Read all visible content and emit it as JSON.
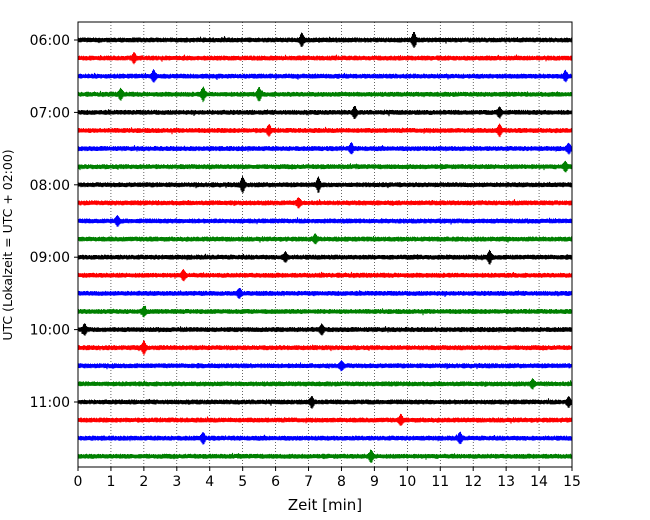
{
  "chart_data": {
    "type": "line",
    "subtype": "seismogram-helicorder",
    "title": "",
    "xlabel": "Zeit  [min]",
    "ylabel": "UTC (Lokalzeit = UTC + 02:00)",
    "xlim": [
      0,
      15
    ],
    "x_ticks": [
      0,
      1,
      2,
      3,
      4,
      5,
      6,
      7,
      8,
      9,
      10,
      11,
      12,
      13,
      14,
      15
    ],
    "x_tick_labels": [
      "0",
      "1",
      "2",
      "3",
      "4",
      "5",
      "6",
      "7",
      "8",
      "9",
      "10",
      "11",
      "12",
      "13",
      "14",
      "15"
    ],
    "y_tick_labels": [
      "06:00",
      "07:00",
      "08:00",
      "09:00",
      "10:00",
      "11:00"
    ],
    "grid": {
      "vertical": true,
      "style": "dotted"
    },
    "row_minutes": 15,
    "trace_color_cycle": [
      "#000000",
      "#ff0000",
      "#0000ff",
      "#008000"
    ],
    "traces": [
      {
        "start": "06:00",
        "color": "#000000",
        "events": [
          {
            "x": 6.8,
            "amp": 2.2
          },
          {
            "x": 10.2,
            "amp": 2.5
          }
        ]
      },
      {
        "start": "06:15",
        "color": "#ff0000",
        "events": [
          {
            "x": 1.7,
            "amp": 1.6
          }
        ]
      },
      {
        "start": "06:30",
        "color": "#0000ff",
        "events": [
          {
            "x": 2.3,
            "amp": 2.0
          },
          {
            "x": 14.8,
            "amp": 1.6
          }
        ]
      },
      {
        "start": "06:45",
        "color": "#008000",
        "events": [
          {
            "x": 1.3,
            "amp": 1.8
          },
          {
            "x": 3.8,
            "amp": 2.3
          },
          {
            "x": 5.5,
            "amp": 2.2
          }
        ]
      },
      {
        "start": "07:00",
        "color": "#000000",
        "events": [
          {
            "x": 8.4,
            "amp": 1.9
          },
          {
            "x": 12.8,
            "amp": 1.7
          }
        ]
      },
      {
        "start": "07:15",
        "color": "#ff0000",
        "events": [
          {
            "x": 5.8,
            "amp": 1.8
          },
          {
            "x": 12.8,
            "amp": 1.9
          }
        ]
      },
      {
        "start": "07:30",
        "color": "#0000ff",
        "events": [
          {
            "x": 8.3,
            "amp": 1.6
          },
          {
            "x": 14.9,
            "amp": 1.5
          }
        ]
      },
      {
        "start": "07:45",
        "color": "#008000",
        "events": [
          {
            "x": 14.8,
            "amp": 1.6
          }
        ]
      },
      {
        "start": "08:00",
        "color": "#000000",
        "events": [
          {
            "x": 5.0,
            "amp": 2.6
          },
          {
            "x": 7.3,
            "amp": 2.4
          }
        ]
      },
      {
        "start": "08:15",
        "color": "#ff0000",
        "events": [
          {
            "x": 6.7,
            "amp": 1.5
          }
        ]
      },
      {
        "start": "08:30",
        "color": "#0000ff",
        "events": [
          {
            "x": 1.2,
            "amp": 1.5
          }
        ]
      },
      {
        "start": "08:45",
        "color": "#008000",
        "events": [
          {
            "x": 7.2,
            "amp": 1.4
          }
        ]
      },
      {
        "start": "09:00",
        "color": "#000000",
        "events": [
          {
            "x": 6.3,
            "amp": 1.6
          },
          {
            "x": 12.5,
            "amp": 2.2
          }
        ]
      },
      {
        "start": "09:15",
        "color": "#ff0000",
        "events": [
          {
            "x": 3.2,
            "amp": 1.7
          }
        ]
      },
      {
        "start": "09:30",
        "color": "#0000ff",
        "events": [
          {
            "x": 4.9,
            "amp": 1.5
          }
        ]
      },
      {
        "start": "09:45",
        "color": "#008000",
        "events": [
          {
            "x": 2.0,
            "amp": 1.5
          }
        ]
      },
      {
        "start": "10:00",
        "color": "#000000",
        "events": [
          {
            "x": 0.2,
            "amp": 1.7
          },
          {
            "x": 7.4,
            "amp": 1.6
          }
        ]
      },
      {
        "start": "10:15",
        "color": "#ff0000",
        "events": [
          {
            "x": 2.0,
            "amp": 2.2
          }
        ]
      },
      {
        "start": "10:30",
        "color": "#0000ff",
        "events": [
          {
            "x": 8.0,
            "amp": 1.5
          }
        ]
      },
      {
        "start": "10:45",
        "color": "#008000",
        "events": [
          {
            "x": 13.8,
            "amp": 1.4
          }
        ]
      },
      {
        "start": "11:00",
        "color": "#000000",
        "events": [
          {
            "x": 7.1,
            "amp": 1.8
          },
          {
            "x": 14.9,
            "amp": 1.6
          }
        ]
      },
      {
        "start": "11:15",
        "color": "#ff0000",
        "events": [
          {
            "x": 9.8,
            "amp": 1.6
          }
        ]
      },
      {
        "start": "11:30",
        "color": "#0000ff",
        "events": [
          {
            "x": 3.8,
            "amp": 1.7
          },
          {
            "x": 11.6,
            "amp": 1.8
          }
        ]
      },
      {
        "start": "11:45",
        "color": "#008000",
        "events": [
          {
            "x": 8.9,
            "amp": 1.9
          }
        ]
      }
    ]
  }
}
